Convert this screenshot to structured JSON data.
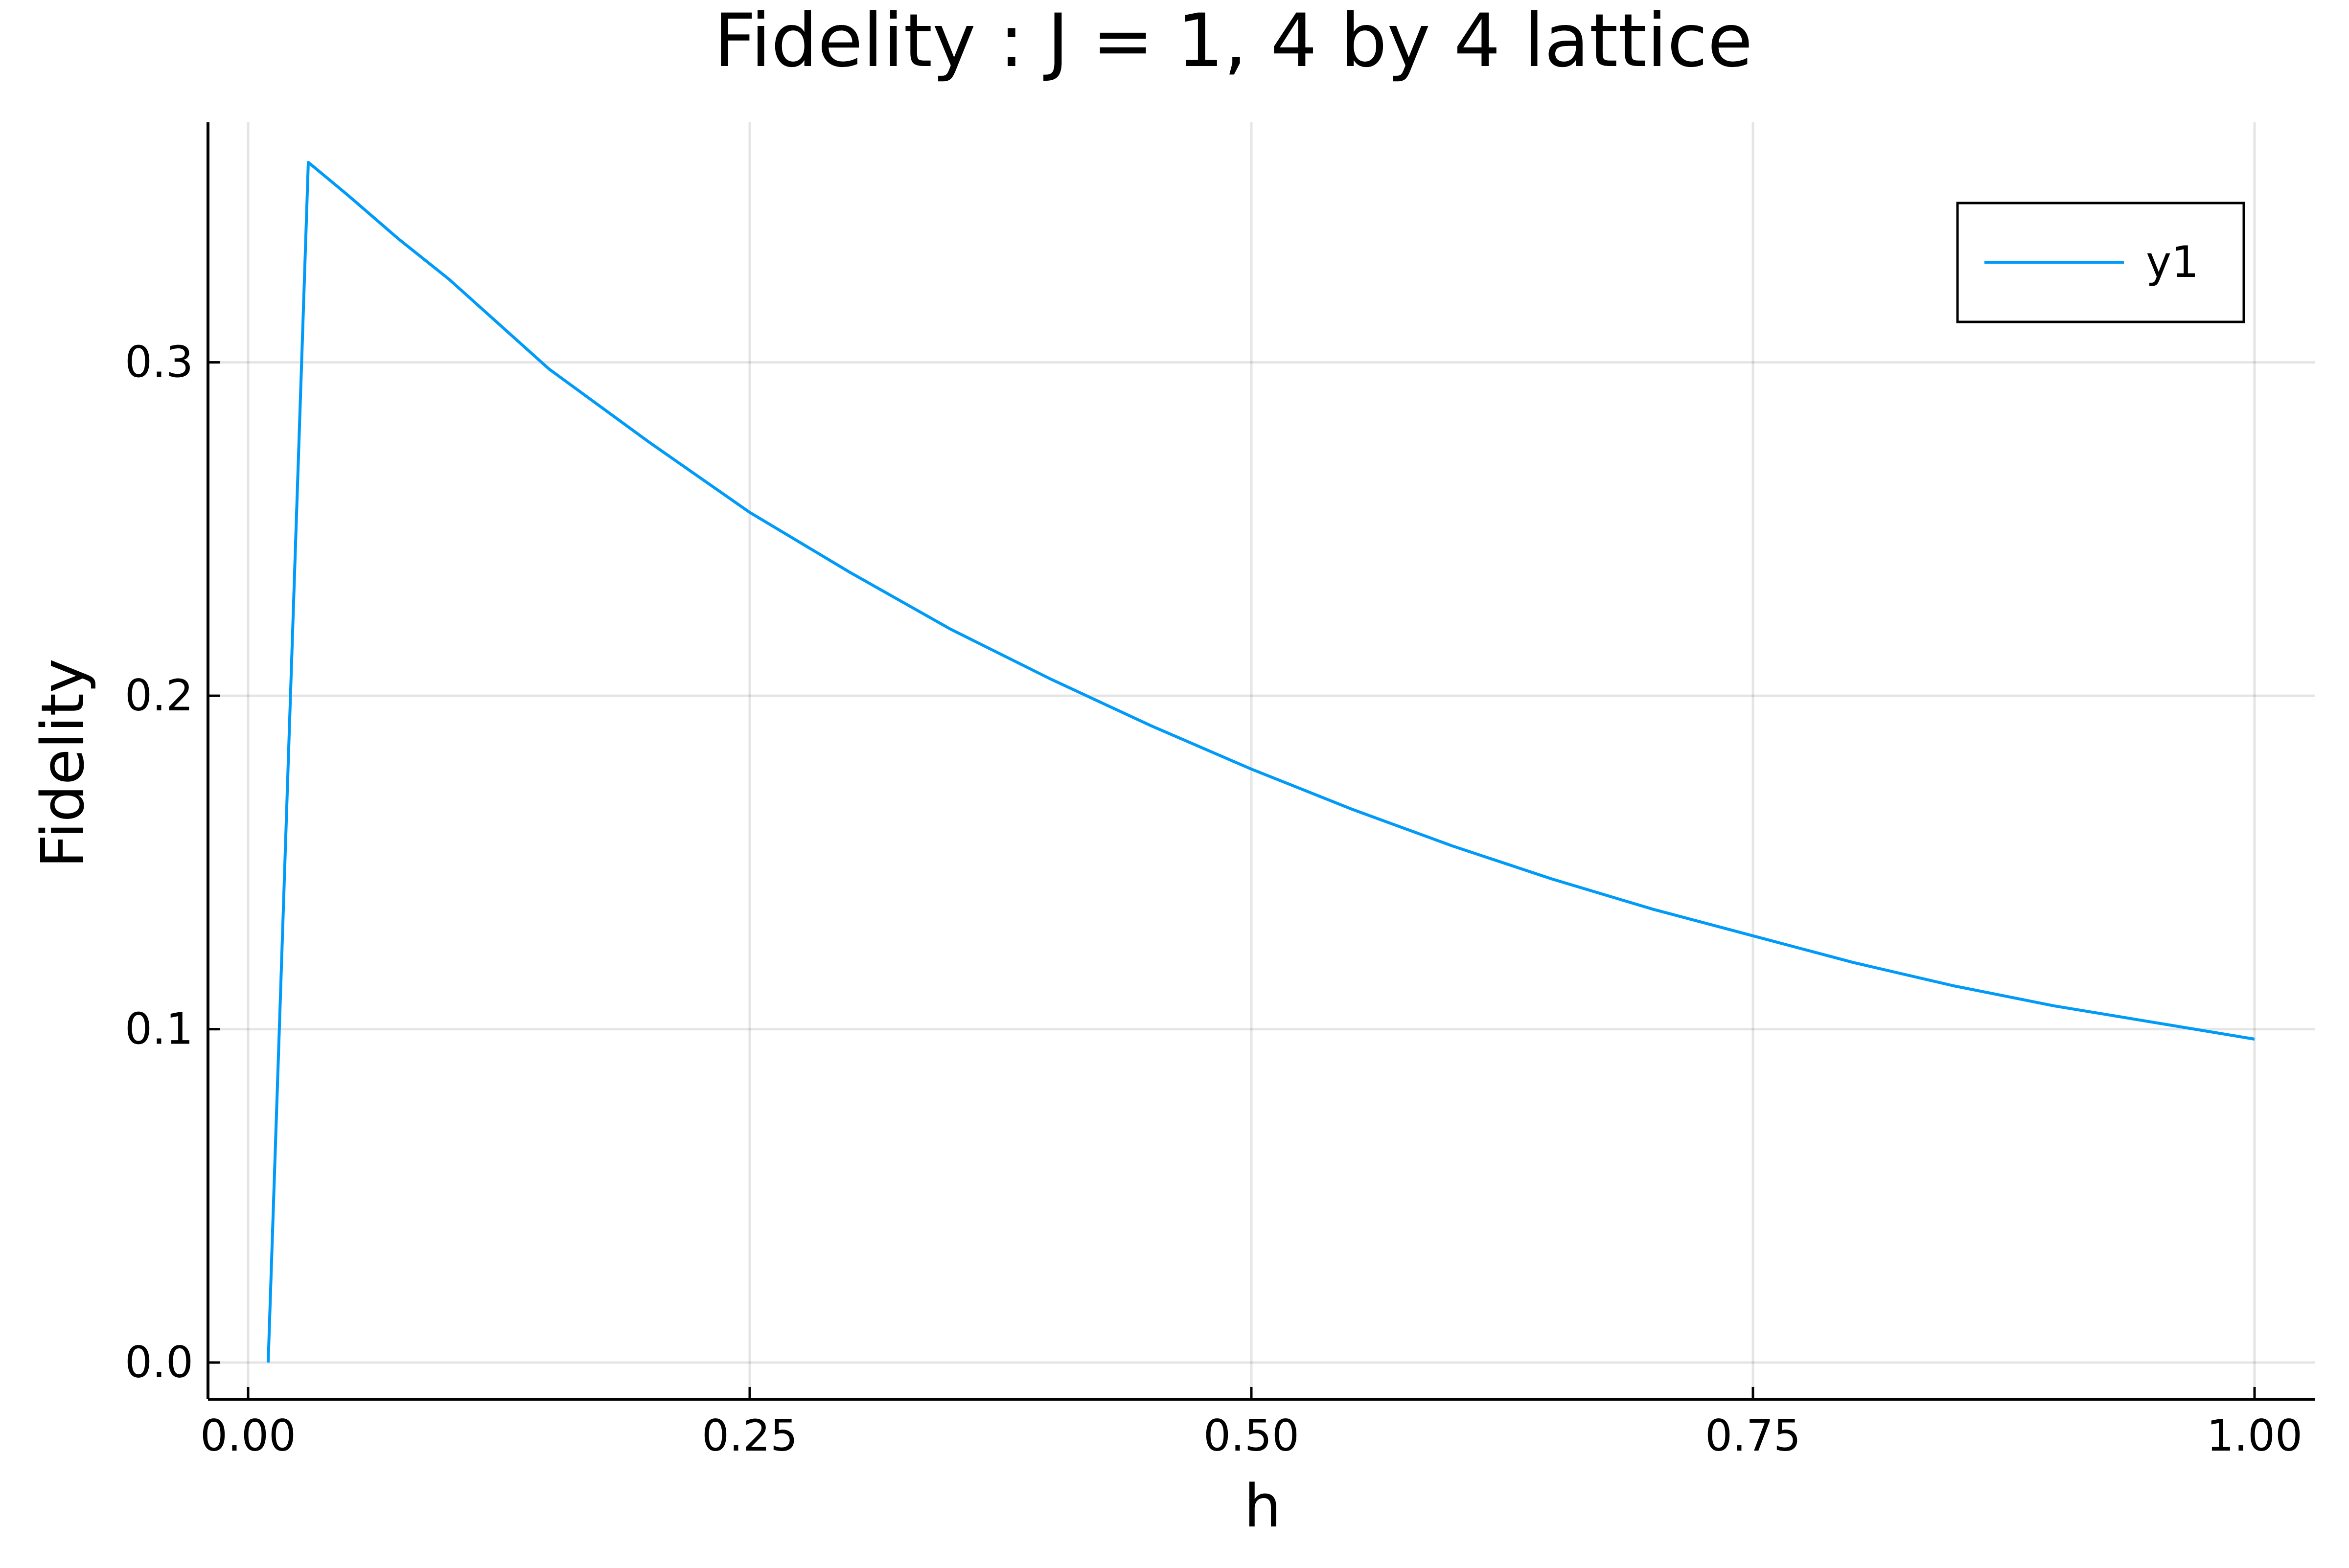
{
  "chart_data": {
    "type": "line",
    "title": "Fidelity : J = 1, 4 by 4 lattice",
    "xlabel": "h",
    "ylabel": "Fidelity",
    "xlim": [
      -0.02,
      1.03
    ],
    "ylim": [
      -0.011,
      0.372
    ],
    "x_ticks": [
      0.0,
      0.25,
      0.5,
      0.75,
      1.0
    ],
    "x_tick_labels": [
      "0.00",
      "0.25",
      "0.50",
      "0.75",
      "1.00"
    ],
    "y_ticks": [
      0.0,
      0.1,
      0.2,
      0.3
    ],
    "y_tick_labels": [
      "0.0",
      "0.1",
      "0.2",
      "0.3"
    ],
    "grid": true,
    "legend_position": "top-right",
    "series": [
      {
        "name": "y1",
        "color": "#009af9",
        "x": [
          0.01,
          0.03,
          0.05,
          0.075,
          0.1,
          0.15,
          0.2,
          0.25,
          0.3,
          0.35,
          0.4,
          0.45,
          0.5,
          0.55,
          0.6,
          0.65,
          0.7,
          0.75,
          0.8,
          0.85,
          0.9,
          0.95,
          1.0
        ],
        "y": [
          0.0,
          0.36,
          0.35,
          0.337,
          0.325,
          0.298,
          0.276,
          0.255,
          0.237,
          0.22,
          0.205,
          0.191,
          0.178,
          0.166,
          0.155,
          0.145,
          0.136,
          0.128,
          0.12,
          0.113,
          0.107,
          0.102,
          0.097
        ]
      }
    ]
  }
}
